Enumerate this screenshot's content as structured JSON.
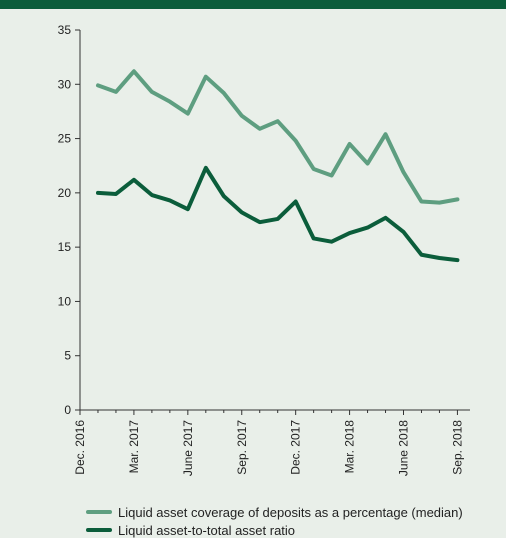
{
  "header": {
    "title": ""
  },
  "colors": {
    "background": "#e9efe9",
    "header": "#0b5d3b",
    "series1": "#5e9e80",
    "series2": "#0b5d3b",
    "axis": "#333333"
  },
  "chart_data": {
    "type": "line",
    "title": "",
    "xlabel": "",
    "ylabel": "",
    "ylim": [
      0,
      35
    ],
    "yticks": [
      0,
      5,
      10,
      15,
      20,
      25,
      30,
      35
    ],
    "ytick_labels": [
      "0",
      "5",
      "10",
      "15",
      "20",
      "25",
      "30",
      "35"
    ],
    "x_tick_labels": [
      "Dec. 2016",
      "Mar. 2017",
      "June 2017",
      "Sep. 2017",
      "Dec. 2017",
      "Mar. 2018",
      "June 2018",
      "Sep. 2018"
    ],
    "x_range": [
      0,
      21.7
    ],
    "x": [
      1,
      2,
      3,
      4,
      5,
      6,
      7,
      8,
      9,
      10,
      11,
      12,
      13,
      14,
      15,
      16,
      17,
      18,
      19,
      20,
      21
    ],
    "grid": false,
    "legend_position": "bottom-left",
    "series": [
      {
        "name": "Liquid asset coverage of deposits as a percentage (median)",
        "values": [
          29.9,
          29.3,
          31.2,
          29.3,
          28.4,
          27.3,
          30.7,
          29.2,
          27.1,
          25.9,
          26.6,
          24.8,
          22.2,
          21.6,
          24.5,
          22.7,
          25.4,
          21.9,
          19.2,
          19.1,
          19.4
        ]
      },
      {
        "name": "Liquid asset-to-total asset ratio",
        "values": [
          20.0,
          19.9,
          21.2,
          19.8,
          19.3,
          18.5,
          22.3,
          19.7,
          18.2,
          17.3,
          17.6,
          19.2,
          15.8,
          15.5,
          16.3,
          16.8,
          17.7,
          16.4,
          14.3,
          14.0,
          13.8
        ]
      }
    ]
  }
}
